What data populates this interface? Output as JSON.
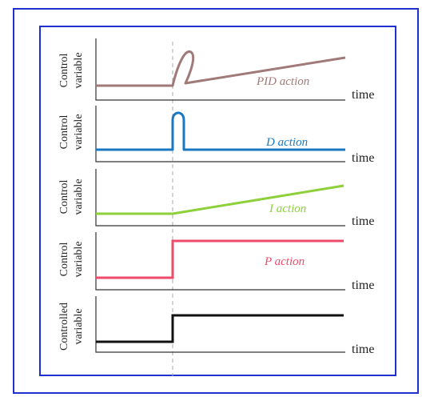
{
  "x_axis_label": "time",
  "step_marker": "dashed vertical line at step time",
  "panels": [
    {
      "id": "pid",
      "ylabel": [
        "Control",
        "variable"
      ],
      "caption": "PID action",
      "color": "#a07a78"
    },
    {
      "id": "d",
      "ylabel": [
        "Control",
        "variable"
      ],
      "caption": "D action",
      "color": "#1a78c2"
    },
    {
      "id": "i",
      "ylabel": [
        "Control",
        "variable"
      ],
      "caption": "I action",
      "color": "#8cd03a"
    },
    {
      "id": "p",
      "ylabel": [
        "Control",
        "variable"
      ],
      "caption": "P action",
      "color": "#ef4a6a"
    },
    {
      "id": "controlled",
      "ylabel": [
        "Controlled",
        "variable"
      ],
      "caption": "",
      "color": "#111111"
    }
  ],
  "frame_color": "#1f2fd0"
}
